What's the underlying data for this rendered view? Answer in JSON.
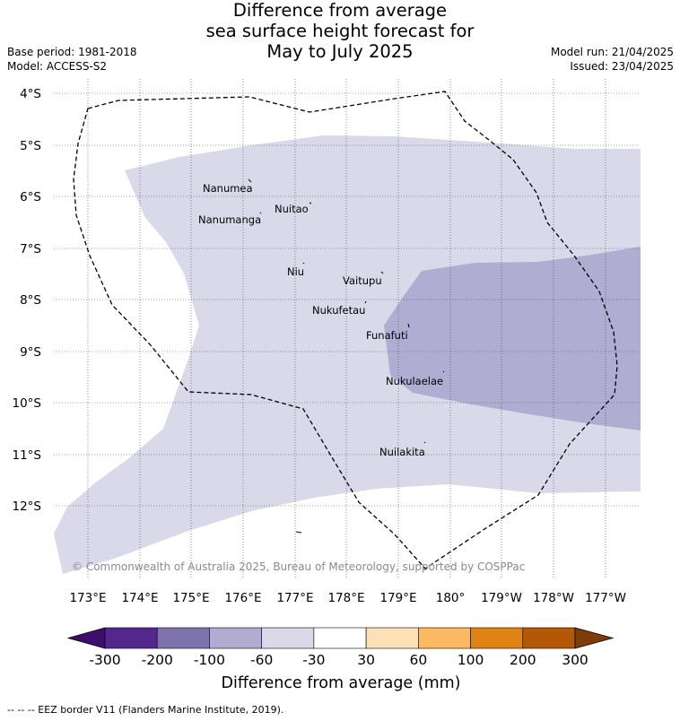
{
  "title": [
    "Difference from average",
    "sea surface height forecast for",
    "May to July 2025"
  ],
  "meta_left": [
    "Base period: 1981-2018",
    "Model: ACCESS-S2"
  ],
  "meta_right": [
    "Model run: 21/04/2025",
    "Issued: 23/04/2025"
  ],
  "copyright": "© Commonwealth of Australia 2025, Bureau of Meteorology, supported by COSPPac",
  "lat_labels": [
    "4°S",
    "5°S",
    "6°S",
    "7°S",
    "8°S",
    "9°S",
    "10°S",
    "11°S",
    "12°S"
  ],
  "lon_labels": [
    "173°E",
    "174°E",
    "175°E",
    "176°E",
    "177°E",
    "178°E",
    "179°E",
    "180°",
    "179°W",
    "178°W",
    "177°W"
  ],
  "islands": [
    {
      "name": "Nanumea",
      "lon": 176.13,
      "lat": -5.68
    },
    {
      "name": "Nuitao",
      "lon": 177.33,
      "lat": -6.11
    },
    {
      "name": "Nanumanga",
      "lon": 176.32,
      "lat": -6.29
    },
    {
      "name": "Niu",
      "lon": 177.18,
      "lat": -7.27
    },
    {
      "name": "Vaitupu",
      "lon": 178.68,
      "lat": -7.48
    },
    {
      "name": "Nukufetau",
      "lon": 178.38,
      "lat": -8.03
    },
    {
      "name": "Funafuti",
      "lon": 179.2,
      "lat": -8.52
    },
    {
      "name": "Nukulaelae",
      "lon": 179.83,
      "lat": -9.38
    },
    {
      "name": "Nuilakita",
      "lon": 179.23,
      "lat": -10.78
    }
  ],
  "colorbar": {
    "labels": [
      "-300",
      "-200",
      "-100",
      "-60",
      "-30",
      "30",
      "60",
      "100",
      "200",
      "300"
    ],
    "colors": [
      "#3f0d6b",
      "#54278f",
      "#7f73ad",
      "#b1acd1",
      "#d9d9ea",
      "#ffffff",
      "#fee0b6",
      "#fdb863",
      "#e08214",
      "#b35806",
      "#7f3b08"
    ],
    "title": "Difference from average (mm)"
  },
  "legend": {
    "colors_in_map": {
      "-60 to -30": "#d9d9ea",
      "-100 to -60": "#b1acd1"
    }
  },
  "footer": "-- -- -- EEZ border V11 (Flanders Marine Institute, 2019)."
}
